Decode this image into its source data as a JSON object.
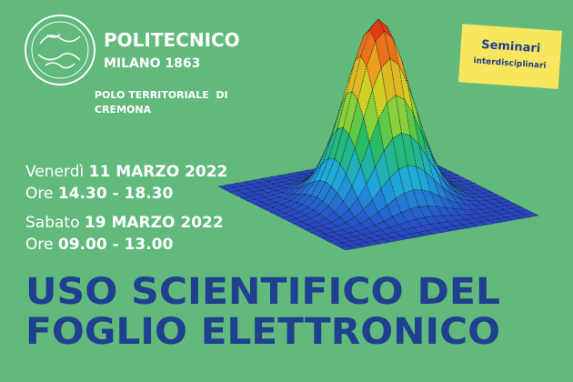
{
  "header": {
    "institution": "POLITECNICO",
    "city": "MILANO 1863",
    "branch_line1": "POLO TERRITORIALE  DI",
    "branch_line2": "CREMONA"
  },
  "note": {
    "line1": "Seminari",
    "line2": "interdisciplinari"
  },
  "sessions": [
    {
      "day": "Venerdì",
      "date": "11 MARZO 2022",
      "time_prefix": "Ore",
      "time": "14.30 - 18.30"
    },
    {
      "day": "Sabato",
      "date": "19 MARZO 2022",
      "time_prefix": "Ore",
      "time": "09.00 - 13.00"
    }
  ],
  "title": {
    "line1": "USO SCIENTIFICO DEL",
    "line2": "FOGLIO ELETTRONICO"
  }
}
